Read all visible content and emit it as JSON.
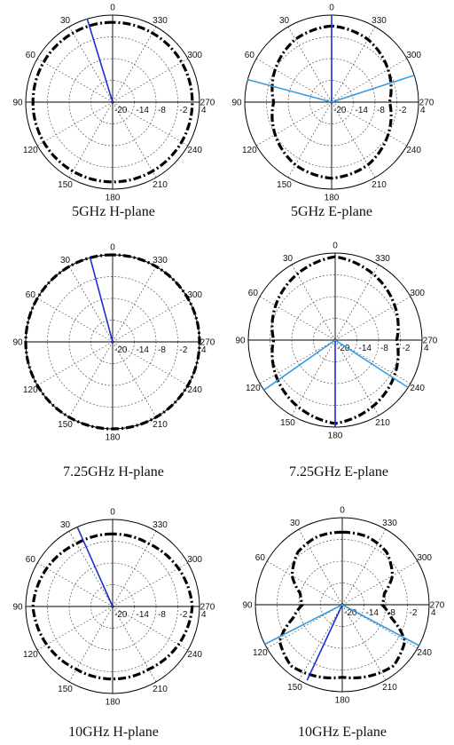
{
  "colors": {
    "pattern": "#000000",
    "grid": "#555555",
    "frame": "#000000",
    "marker_dark": "#1a2fd6",
    "marker_light": "#3a9be0"
  },
  "angle_labels": [
    "0",
    "30",
    "60",
    "90",
    "120",
    "150",
    "180",
    "210",
    "240",
    "270",
    "300",
    "330"
  ],
  "radial_tick_labels": [
    "-20",
    "-14",
    "-8",
    "-2",
    "4"
  ],
  "chart_data": [
    {
      "type": "polar",
      "caption": "5GHz H-plane",
      "angular_ticks_deg": [
        0,
        30,
        60,
        90,
        120,
        150,
        180,
        210,
        240,
        270,
        300,
        330
      ],
      "radial_ticks": [
        -20,
        -14,
        -8,
        -2,
        4
      ],
      "rlim": [
        -20,
        4
      ],
      "grid": true,
      "series": [
        {
          "style": "dash-dot",
          "angles": [
            0,
            30,
            60,
            90,
            120,
            150,
            180,
            210,
            240,
            270,
            300,
            330
          ],
          "values": [
            2,
            2,
            2,
            2,
            2,
            2,
            2,
            2,
            2,
            2,
            2,
            2
          ]
        }
      ],
      "markers": [
        {
          "angle": 17,
          "value": 4,
          "color": "dark"
        }
      ]
    },
    {
      "type": "polar",
      "caption": "5GHz E-plane",
      "angular_ticks_deg": [
        0,
        30,
        60,
        90,
        120,
        150,
        180,
        210,
        240,
        270,
        300,
        330
      ],
      "radial_ticks": [
        -20,
        -14,
        -8,
        -2,
        4
      ],
      "rlim": [
        -20,
        4
      ],
      "grid": true,
      "series": [
        {
          "style": "dash-dot",
          "angles": [
            0,
            30,
            60,
            90,
            120,
            150,
            180,
            210,
            240,
            270,
            300,
            330
          ],
          "values": [
            1,
            0,
            -2,
            -4,
            -2,
            0,
            1,
            0,
            -2,
            -4,
            -2,
            0
          ]
        }
      ],
      "markers": [
        {
          "angle": 0,
          "value": 4,
          "color": "dark"
        },
        {
          "angle": 75,
          "value": 4,
          "color": "light"
        },
        {
          "angle": 288,
          "value": 4,
          "color": "light"
        }
      ]
    },
    {
      "type": "polar",
      "caption": "7.25GHz H-plane",
      "angular_ticks_deg": [
        0,
        30,
        60,
        90,
        120,
        150,
        180,
        210,
        240,
        270,
        300,
        330
      ],
      "radial_ticks": [
        -20,
        -14,
        -8,
        -2,
        4
      ],
      "rlim": [
        -20,
        4
      ],
      "grid": true,
      "series": [
        {
          "style": "dash-dot",
          "angles": [
            0,
            30,
            60,
            90,
            120,
            150,
            180,
            210,
            240,
            270,
            300,
            330
          ],
          "values": [
            4,
            4,
            4,
            4,
            4,
            4,
            4,
            4,
            4,
            4,
            4,
            4
          ]
        }
      ],
      "markers": [
        {
          "angle": 15,
          "value": 4,
          "color": "dark"
        }
      ]
    },
    {
      "type": "polar",
      "caption": "7.25GHz E-plane",
      "angular_ticks_deg": [
        0,
        30,
        60,
        90,
        120,
        150,
        180,
        210,
        240,
        270,
        300,
        330
      ],
      "radial_ticks": [
        -20,
        -14,
        -8,
        -2,
        4
      ],
      "rlim": [
        -20,
        4
      ],
      "grid": true,
      "series": [
        {
          "style": "dash-dot",
          "angles": [
            0,
            30,
            60,
            90,
            120,
            150,
            180,
            210,
            240,
            270,
            300,
            330
          ],
          "values": [
            3,
            1,
            -1,
            -3,
            -1,
            1,
            3,
            1,
            -1,
            -3,
            -1,
            1
          ]
        }
      ],
      "markers": [
        {
          "angle": 180,
          "value": 4,
          "color": "dark"
        },
        {
          "angle": 125,
          "value": 4,
          "color": "light"
        },
        {
          "angle": 237,
          "value": 4,
          "color": "light"
        }
      ]
    },
    {
      "type": "polar",
      "caption": "10GHz H-plane",
      "angular_ticks_deg": [
        0,
        30,
        60,
        90,
        120,
        150,
        180,
        210,
        240,
        270,
        300,
        330
      ],
      "radial_ticks": [
        -20,
        -14,
        -8,
        -2,
        4
      ],
      "rlim": [
        -20,
        4
      ],
      "grid": true,
      "series": [
        {
          "style": "dash-dot",
          "angles": [
            0,
            30,
            60,
            90,
            120,
            150,
            180,
            210,
            240,
            270,
            300,
            330
          ],
          "values": [
            0,
            0,
            1,
            2,
            1,
            0,
            0,
            0,
            1,
            2,
            1,
            0
          ]
        }
      ],
      "markers": [
        {
          "angle": 24,
          "value": 4,
          "color": "dark"
        }
      ]
    },
    {
      "type": "polar",
      "caption": "10GHz E-plane",
      "angular_ticks_deg": [
        0,
        30,
        60,
        90,
        120,
        150,
        180,
        210,
        240,
        270,
        300,
        330
      ],
      "radial_ticks": [
        -20,
        -14,
        -8,
        -2,
        4
      ],
      "rlim": [
        -20,
        4
      ],
      "grid": true,
      "series": [
        {
          "style": "dash-dot",
          "angles": [
            0,
            20,
            40,
            60,
            75,
            90,
            105,
            120,
            140,
            160,
            180,
            200,
            220,
            240,
            255,
            270,
            285,
            300,
            320,
            340
          ],
          "values": [
            0,
            0,
            -1,
            -4,
            -8,
            -9,
            -6,
            0,
            2,
            1,
            0,
            1,
            2,
            0,
            -6,
            -9,
            -8,
            -4,
            -1,
            0
          ]
        }
      ],
      "markers": [
        {
          "angle": 155,
          "value": 3,
          "color": "dark"
        },
        {
          "angle": 117,
          "value": 4,
          "color": "light"
        },
        {
          "angle": 242,
          "value": 4,
          "color": "light"
        }
      ]
    }
  ]
}
